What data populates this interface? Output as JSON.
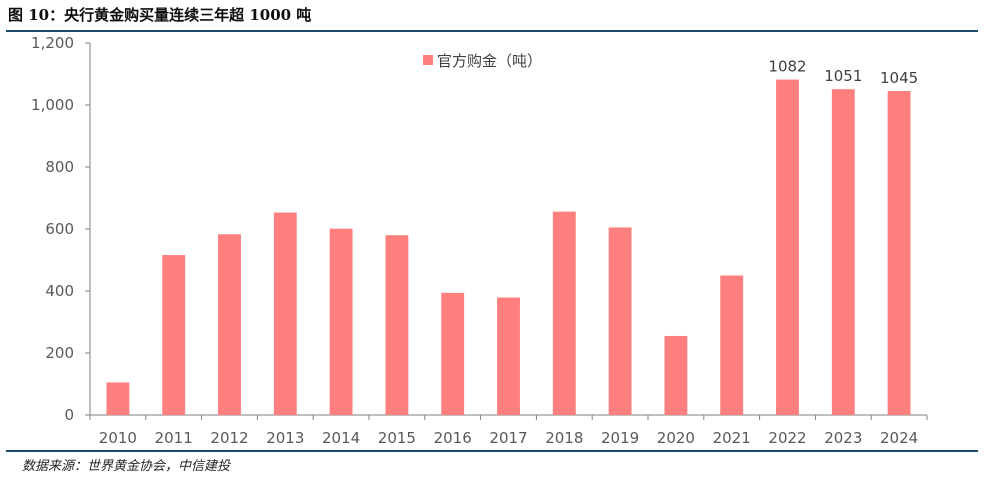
{
  "header": {
    "title": "图 10：央行黄金购买量连续三年超 1000 吨"
  },
  "footer": {
    "source": "数据来源：世界黄金协会，中信建投"
  },
  "colors": {
    "bar": "#ff7f7f",
    "rule": "#1e4a6b",
    "axis": "#7f7f7f"
  },
  "chart_data": {
    "type": "bar",
    "title": "",
    "xlabel": "",
    "ylabel": "",
    "ylim": [
      0,
      1200
    ],
    "ytick_step": 200,
    "grid": false,
    "legend_position": "top-center",
    "categories": [
      "2010",
      "2011",
      "2012",
      "2013",
      "2014",
      "2015",
      "2016",
      "2017",
      "2018",
      "2019",
      "2020",
      "2021",
      "2022",
      "2023",
      "2024"
    ],
    "series": [
      {
        "name": "官方购金（吨）",
        "values": [
          105,
          516,
          583,
          653,
          601,
          580,
          394,
          379,
          656,
          605,
          255,
          450,
          1082,
          1051,
          1045
        ]
      }
    ],
    "data_labels": {
      "2022": "1082",
      "2023": "1051",
      "2024": "1045"
    }
  }
}
